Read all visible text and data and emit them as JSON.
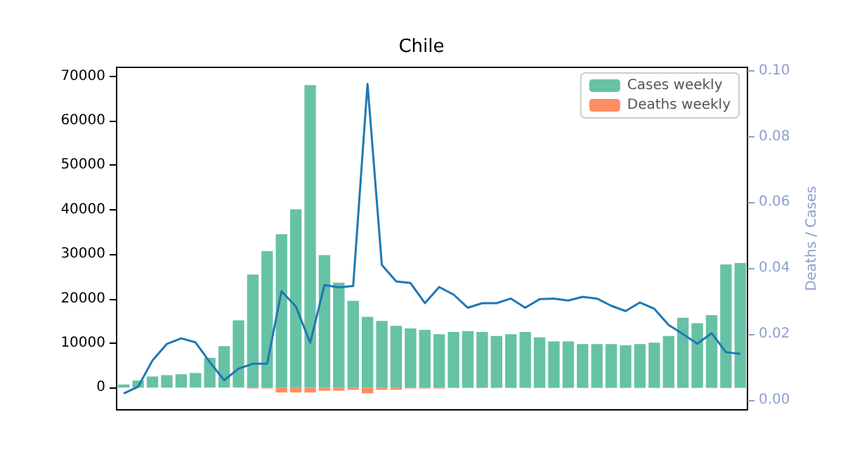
{
  "chart_data": {
    "type": "bar",
    "title": "Chile",
    "y2label": "Deaths / Cases",
    "categories": [
      null,
      null,
      null,
      null,
      null,
      null,
      null,
      null,
      null,
      null,
      null,
      null,
      null,
      null,
      null,
      null,
      null,
      null,
      null,
      null,
      null,
      null,
      null,
      null,
      null,
      null,
      null,
      null,
      null,
      null,
      null,
      null,
      null,
      null,
      null,
      null,
      null,
      null,
      null,
      null,
      null,
      null,
      null,
      null
    ],
    "series": [
      {
        "name": "Cases weekly",
        "color": "#66c2a5",
        "values": [
          700,
          1600,
          2500,
          2800,
          3000,
          3300,
          6700,
          9300,
          15100,
          25400,
          30700,
          34500,
          40100,
          68000,
          29800,
          23600,
          19500,
          15900,
          15000,
          13900,
          13300,
          13000,
          12000,
          12500,
          12700,
          12500,
          11600,
          12000,
          12500,
          11300,
          10400,
          10400,
          9800,
          9800,
          9800,
          9500,
          9800,
          10100,
          11600,
          15700,
          14500,
          16300,
          27700,
          28000
        ]
      },
      {
        "name": "Deaths weekly",
        "color": "#fc8d62",
        "values": [
          0,
          0,
          0,
          0,
          0,
          0,
          0,
          0,
          0,
          -200,
          -200,
          -1100,
          -1100,
          -1100,
          -700,
          -700,
          -500,
          -1300,
          -500,
          -500,
          -200,
          -200,
          -200,
          -100,
          -100,
          -100,
          -100,
          -100,
          -100,
          -100,
          -100,
          -100,
          -100,
          -100,
          -100,
          -100,
          -100,
          -100,
          -100,
          -100,
          -100,
          -100,
          -100,
          -100
        ]
      },
      {
        "type": "line",
        "axis": "y2",
        "color": "#1f77b4",
        "values": [
          0.002,
          0.004,
          0.012,
          0.017,
          0.0187,
          0.0175,
          0.0115,
          0.006,
          0.0095,
          0.011,
          0.011,
          0.033,
          0.0284,
          0.0174,
          0.0349,
          0.0342,
          0.0346,
          0.096,
          0.041,
          0.036,
          0.0355,
          0.0294,
          0.0343,
          0.032,
          0.028,
          0.0294,
          0.0294,
          0.0308,
          0.028,
          0.0306,
          0.0308,
          0.0302,
          0.0313,
          0.0308,
          0.0286,
          0.027,
          0.0296,
          0.0277,
          0.0228,
          0.02,
          0.0171,
          0.0203,
          0.0145,
          0.014
        ]
      }
    ],
    "ylim": [
      -5000,
      72000
    ],
    "yticks": [
      0,
      10000,
      20000,
      30000,
      40000,
      50000,
      60000,
      70000
    ],
    "y2lim": [
      -0.003,
      0.101
    ],
    "y2ticks": [
      {
        "value": 0,
        "label": "0.00"
      },
      {
        "value": 0.02,
        "label": "0.02"
      },
      {
        "value": 0.04,
        "label": "0.04"
      },
      {
        "value": 0.06,
        "label": "0.06"
      },
      {
        "value": 0.08,
        "label": "0.08"
      },
      {
        "value": 0.1,
        "label": "0.10"
      }
    ],
    "tick_labels": "y",
    "legend": "top right",
    "grid": false,
    "marker": "none"
  }
}
